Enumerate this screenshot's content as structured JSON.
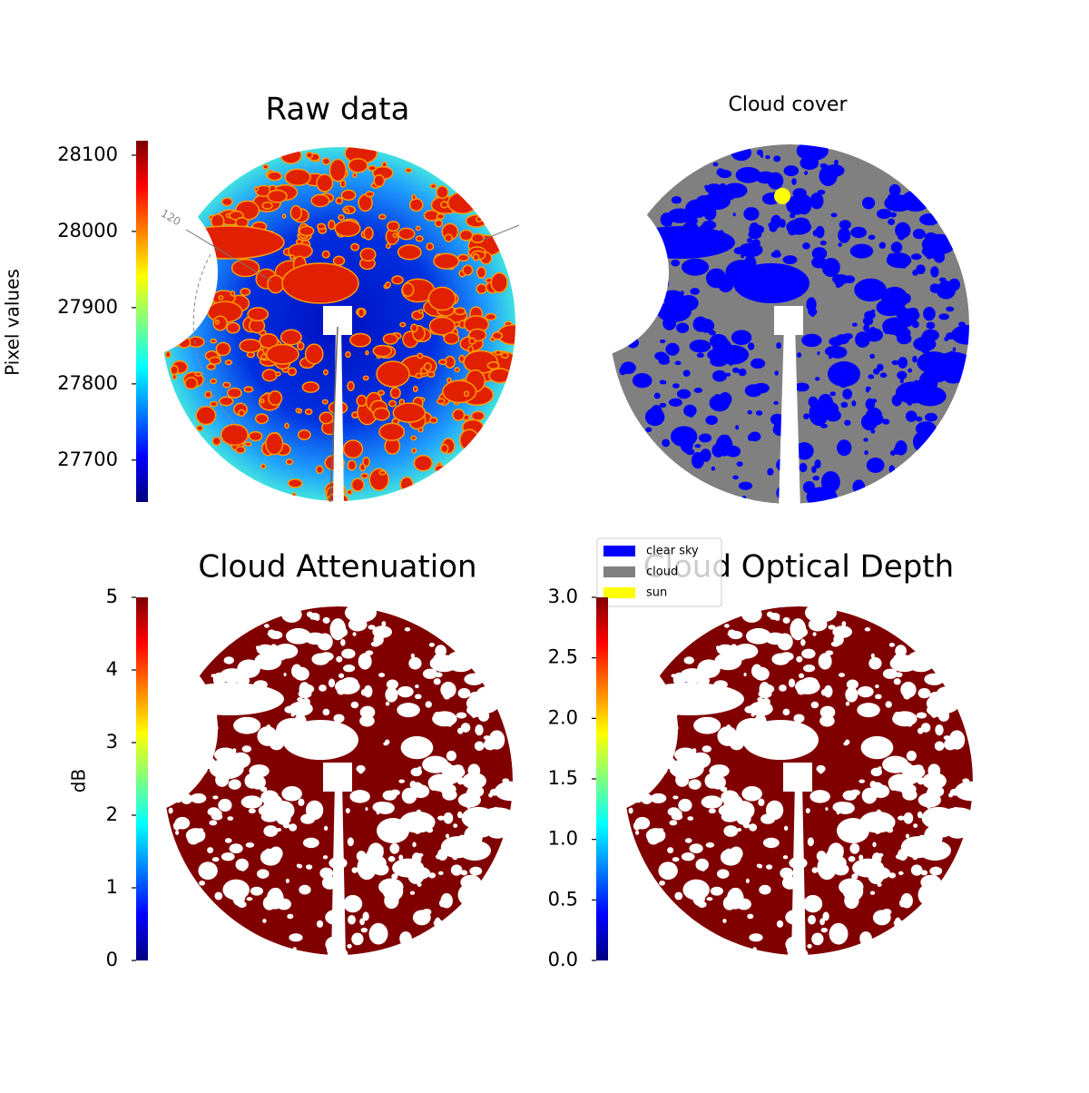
{
  "chart_data": [
    {
      "type": "image",
      "title": "Raw data",
      "annotations": [
        "120"
      ],
      "colorbar": {
        "label": "Pixel values",
        "colormap": "jet",
        "lim": [
          27645,
          28119
        ],
        "ticks": [
          27700,
          27800,
          27900,
          28000,
          28100
        ]
      }
    },
    {
      "type": "image",
      "title": "Cloud cover",
      "legend": {
        "series": [
          {
            "name": "clear sky",
            "color": "#0000ff"
          },
          {
            "name": "cloud",
            "color": "#808080"
          },
          {
            "name": "sun",
            "color": "#ffff00"
          }
        ]
      }
    },
    {
      "type": "image",
      "title": "Cloud Attenuation",
      "colorbar": {
        "label": "dB",
        "colormap": "jet",
        "lim": [
          0,
          5
        ],
        "ticks": [
          0,
          1,
          2,
          3,
          4,
          5
        ]
      }
    },
    {
      "type": "image",
      "title": "Cloud Optical Depth",
      "colorbar": {
        "colormap": "jet",
        "lim": [
          0,
          3
        ],
        "ticks": [
          {
            "value": 0,
            "label": "0.0"
          },
          0.5,
          {
            "value": 1,
            "label": "1.0"
          },
          1.5,
          {
            "value": 2,
            "label": "2.0"
          },
          2.5,
          {
            "value": 3,
            "label": "3.0"
          }
        ]
      }
    }
  ]
}
